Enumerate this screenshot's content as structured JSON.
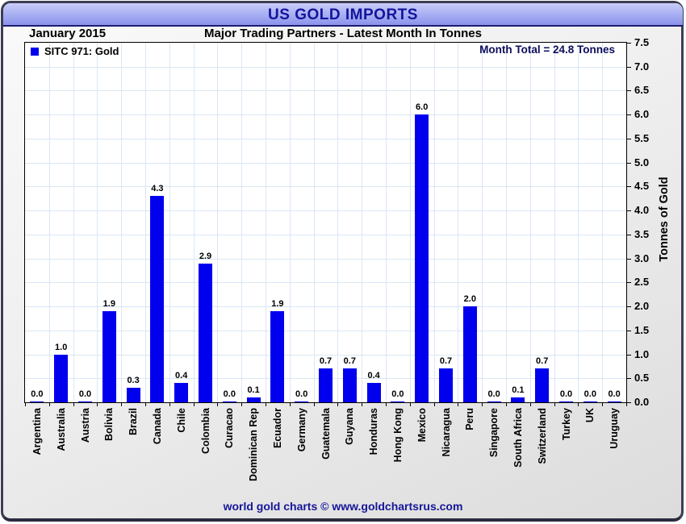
{
  "title_bar": {
    "title": "US GOLD IMPORTS"
  },
  "subheader": {
    "period": "January 2015",
    "subtitle": "Major Trading Partners - Latest Month In Tonnes"
  },
  "legend": {
    "series_label": "SITC 971: Gold"
  },
  "annotations": {
    "month_total": "Month Total = 24.8 Tonnes"
  },
  "y_axis": {
    "label": "Tonnes of Gold"
  },
  "footer": {
    "credit": "world gold charts © www.goldchartsrus.com"
  },
  "colors": {
    "bar": "#0000ee",
    "grid": "#d9e7f5",
    "accent_navy": "#14149c",
    "annotation_navy": "#0d0d5e"
  },
  "chart_data": {
    "type": "bar",
    "title": "US GOLD IMPORTS",
    "subtitle": "Major Trading Partners - Latest Month In Tonnes",
    "period": "January 2015",
    "month_total_tonnes": 24.8,
    "categories": [
      "Argentina",
      "Australia",
      "Austria",
      "Bolivia",
      "Brazil",
      "Canada",
      "Chile",
      "Colombia",
      "Curacao",
      "Dominican Rep",
      "Ecuador",
      "Germany",
      "Guatemala",
      "Guyana",
      "Honduras",
      "Hong Kong",
      "Mexico",
      "Nicaragua",
      "Peru",
      "Singapore",
      "South Africa",
      "Switzerland",
      "Turkey",
      "UK",
      "Uruguay"
    ],
    "series": [
      {
        "name": "SITC 971: Gold",
        "values": [
          0.0,
          1.0,
          0.0,
          1.9,
          0.3,
          4.3,
          0.4,
          2.9,
          0.0,
          0.1,
          1.9,
          0.0,
          0.7,
          0.7,
          0.4,
          0.0,
          6.0,
          0.7,
          2.0,
          0.0,
          0.1,
          0.7,
          0.0,
          0.0,
          0.0
        ]
      }
    ],
    "xlabel": "",
    "ylabel": "Tonnes of Gold",
    "ylim": [
      0,
      7.5
    ],
    "ytick_step": 0.5,
    "grid": true,
    "legend_position": "top-left",
    "value_labels": "one-decimal-above-bars"
  }
}
